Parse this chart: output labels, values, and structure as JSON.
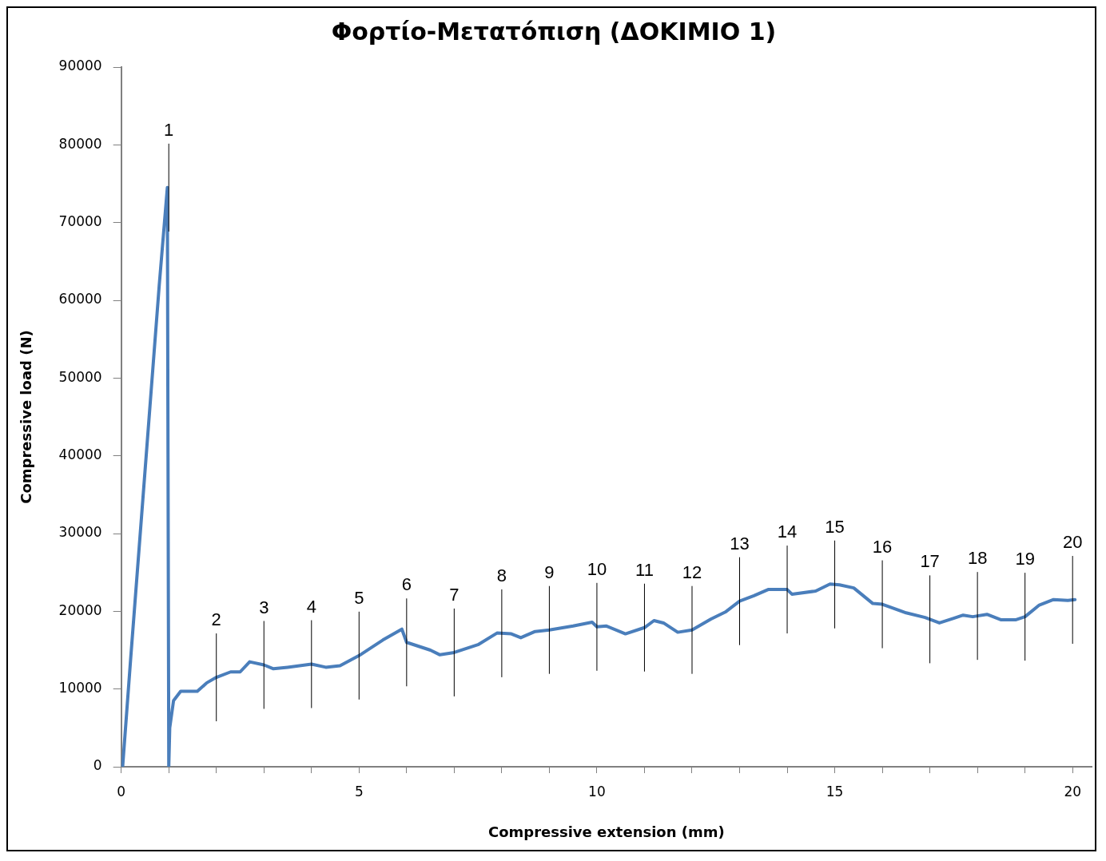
{
  "chart_data": {
    "type": "line",
    "title": "Φορτίο-Μετατόπιση (ΔΟΚΙΜΙΟ 1)",
    "xlabel": "Compressive extension (mm)",
    "ylabel": "Compressive load (N)",
    "x": [
      0.03,
      0.2,
      0.4,
      0.6,
      0.8,
      0.97,
      1.0,
      1.02,
      1.1,
      1.25,
      1.6,
      1.8,
      2.0,
      2.3,
      2.5,
      2.7,
      3.0,
      3.2,
      3.5,
      4.0,
      4.3,
      4.6,
      5.0,
      5.5,
      5.9,
      6.0,
      6.5,
      6.7,
      7.0,
      7.5,
      7.9,
      8.2,
      8.4,
      8.7,
      9.0,
      9.5,
      9.9,
      10.0,
      10.2,
      10.6,
      11.0,
      11.2,
      11.4,
      11.7,
      12.0,
      12.4,
      12.7,
      13.0,
      13.3,
      13.6,
      14.0,
      14.1,
      14.6,
      14.9,
      15.1,
      15.4,
      15.8,
      16.0,
      16.5,
      16.9,
      17.2,
      17.5,
      17.7,
      17.9,
      18.2,
      18.5,
      18.8,
      19.0,
      19.3,
      19.6,
      19.9,
      20.05
    ],
    "series": [
      {
        "color": "#4a7ebb",
        "values": [
          0,
          14000,
          30000,
          46000,
          62000,
          74500,
          0,
          5000,
          8500,
          9700,
          9700,
          10800,
          11500,
          12200,
          12200,
          13500,
          13100,
          12600,
          12800,
          13200,
          12800,
          13000,
          14300,
          16300,
          17700,
          16000,
          15000,
          14400,
          14700,
          15700,
          17200,
          17100,
          16600,
          17400,
          17600,
          18100,
          18600,
          18000,
          18100,
          17100,
          17900,
          18800,
          18500,
          17300,
          17600,
          19000,
          19900,
          21300,
          22000,
          22800,
          22800,
          22200,
          22600,
          23500,
          23400,
          23000,
          21000,
          20900,
          19800,
          19200,
          18500,
          19100,
          19500,
          19300,
          19600,
          18900,
          18900,
          19300,
          20800,
          21500,
          21400,
          21500
        ]
      }
    ],
    "xlim": [
      0,
      20.4
    ],
    "xticks": [
      0,
      {
        "value": 1,
        "label": null
      },
      {
        "value": 2,
        "label": null
      },
      {
        "value": 3,
        "label": null
      },
      {
        "value": 4,
        "label": null
      },
      5,
      {
        "value": 6,
        "label": null
      },
      {
        "value": 7,
        "label": null
      },
      {
        "value": 8,
        "label": null
      },
      {
        "value": 9,
        "label": null
      },
      10,
      {
        "value": 11,
        "label": null
      },
      {
        "value": 12,
        "label": null
      },
      {
        "value": 13,
        "label": null
      },
      {
        "value": 14,
        "label": null
      },
      15,
      {
        "value": 16,
        "label": null
      },
      {
        "value": 17,
        "label": null
      },
      {
        "value": 18,
        "label": null
      },
      {
        "value": 19,
        "label": null
      },
      20
    ],
    "ylim": [
      0,
      90000
    ],
    "yticks": [
      0,
      10000,
      20000,
      30000,
      40000,
      50000,
      60000,
      70000,
      80000,
      90000
    ],
    "grid": false,
    "legend": false,
    "marker": "none",
    "line_style": "solid",
    "ref_lines": [
      {
        "axis": "x",
        "value": 1,
        "label": "1"
      },
      {
        "axis": "x",
        "value": 2,
        "label": "2"
      },
      {
        "axis": "x",
        "value": 3,
        "label": "3"
      },
      {
        "axis": "x",
        "value": 4,
        "label": "4"
      },
      {
        "axis": "x",
        "value": 5,
        "label": "5"
      },
      {
        "axis": "x",
        "value": 6,
        "label": "6"
      },
      {
        "axis": "x",
        "value": 7,
        "label": "7"
      },
      {
        "axis": "x",
        "value": 8,
        "label": "8"
      },
      {
        "axis": "x",
        "value": 9,
        "label": "9"
      },
      {
        "axis": "x",
        "value": 10,
        "label": "10"
      },
      {
        "axis": "x",
        "value": 11,
        "label": "11"
      },
      {
        "axis": "x",
        "value": 12,
        "label": "12"
      },
      {
        "axis": "x",
        "value": 13,
        "label": "13"
      },
      {
        "axis": "x",
        "value": 14,
        "label": "14"
      },
      {
        "axis": "x",
        "value": 15,
        "label": "15"
      },
      {
        "axis": "x",
        "value": 16,
        "label": "16"
      },
      {
        "axis": "x",
        "value": 17,
        "label": "17"
      },
      {
        "axis": "x",
        "value": 18,
        "label": "18"
      },
      {
        "axis": "x",
        "value": 19,
        "label": "19"
      },
      {
        "axis": "x",
        "value": 20,
        "label": "20"
      }
    ]
  }
}
